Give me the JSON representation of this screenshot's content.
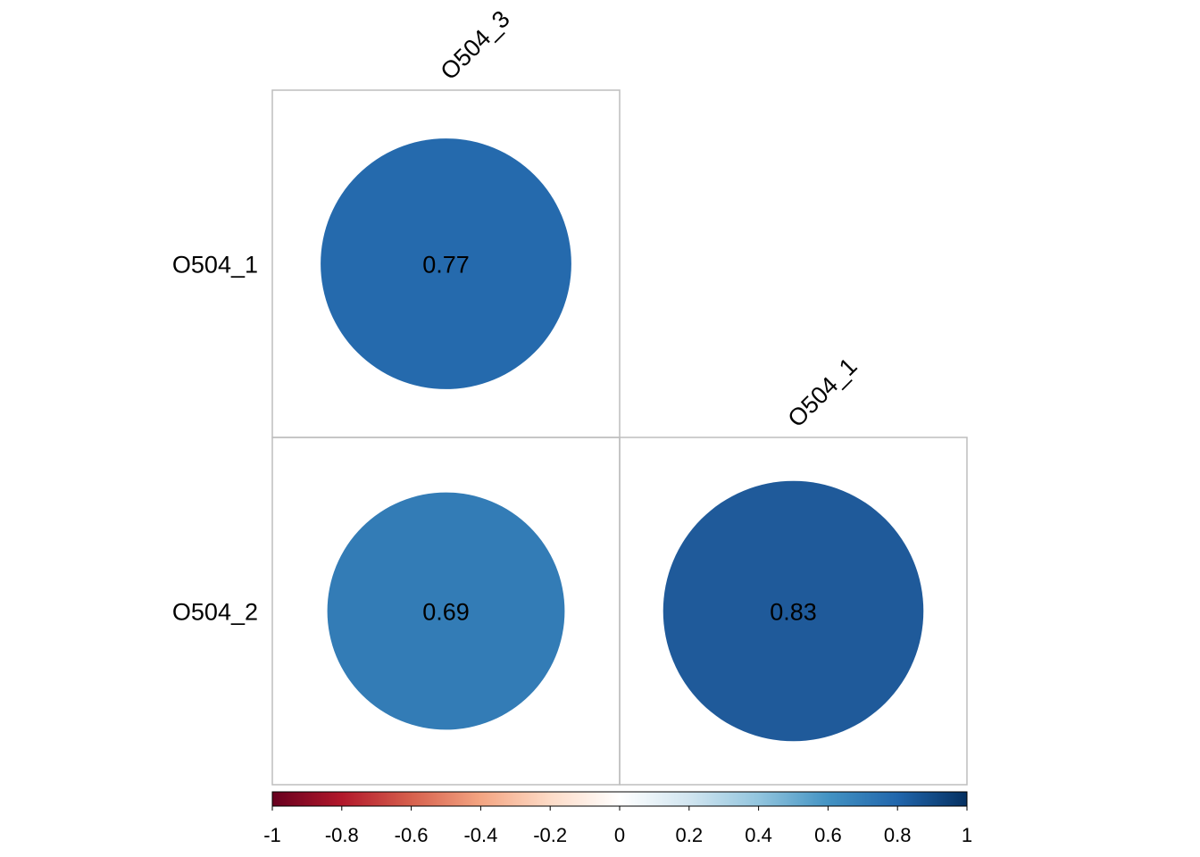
{
  "chart_data": {
    "type": "heatmap",
    "style": "correlation-circle",
    "layout": "lower-triangle",
    "rows": [
      "O504_1",
      "O504_2"
    ],
    "columns": [
      "O504_3",
      "O504_1"
    ],
    "cells": [
      {
        "row": "O504_1",
        "column": "O504_3",
        "value": 0.77,
        "label": "0.77"
      },
      {
        "row": "O504_2",
        "column": "O504_3",
        "value": 0.69,
        "label": "0.69"
      },
      {
        "row": "O504_2",
        "column": "O504_1",
        "value": 0.83,
        "label": "0.83"
      }
    ],
    "colorbar": {
      "range": [
        -1,
        1
      ],
      "ticks": [
        "-1",
        "-0.8",
        "-0.6",
        "-0.4",
        "-0.2",
        "0",
        "0.2",
        "0.4",
        "0.6",
        "0.8",
        "1"
      ],
      "tick_values": [
        -1,
        -0.8,
        -0.6,
        -0.4,
        -0.2,
        0,
        0.2,
        0.4,
        0.6,
        0.8,
        1
      ],
      "placement": "bottom",
      "palette": [
        "#67001f",
        "#b2182b",
        "#d6604d",
        "#f4a582",
        "#fddbc7",
        "#ffffff",
        "#d1e5f0",
        "#92c5de",
        "#4393c3",
        "#2166ac",
        "#053061"
      ]
    },
    "cell_colors": {
      "0.77": "#256aad",
      "0.69": "#337cb6",
      "0.83": "#1f5a9a"
    }
  }
}
